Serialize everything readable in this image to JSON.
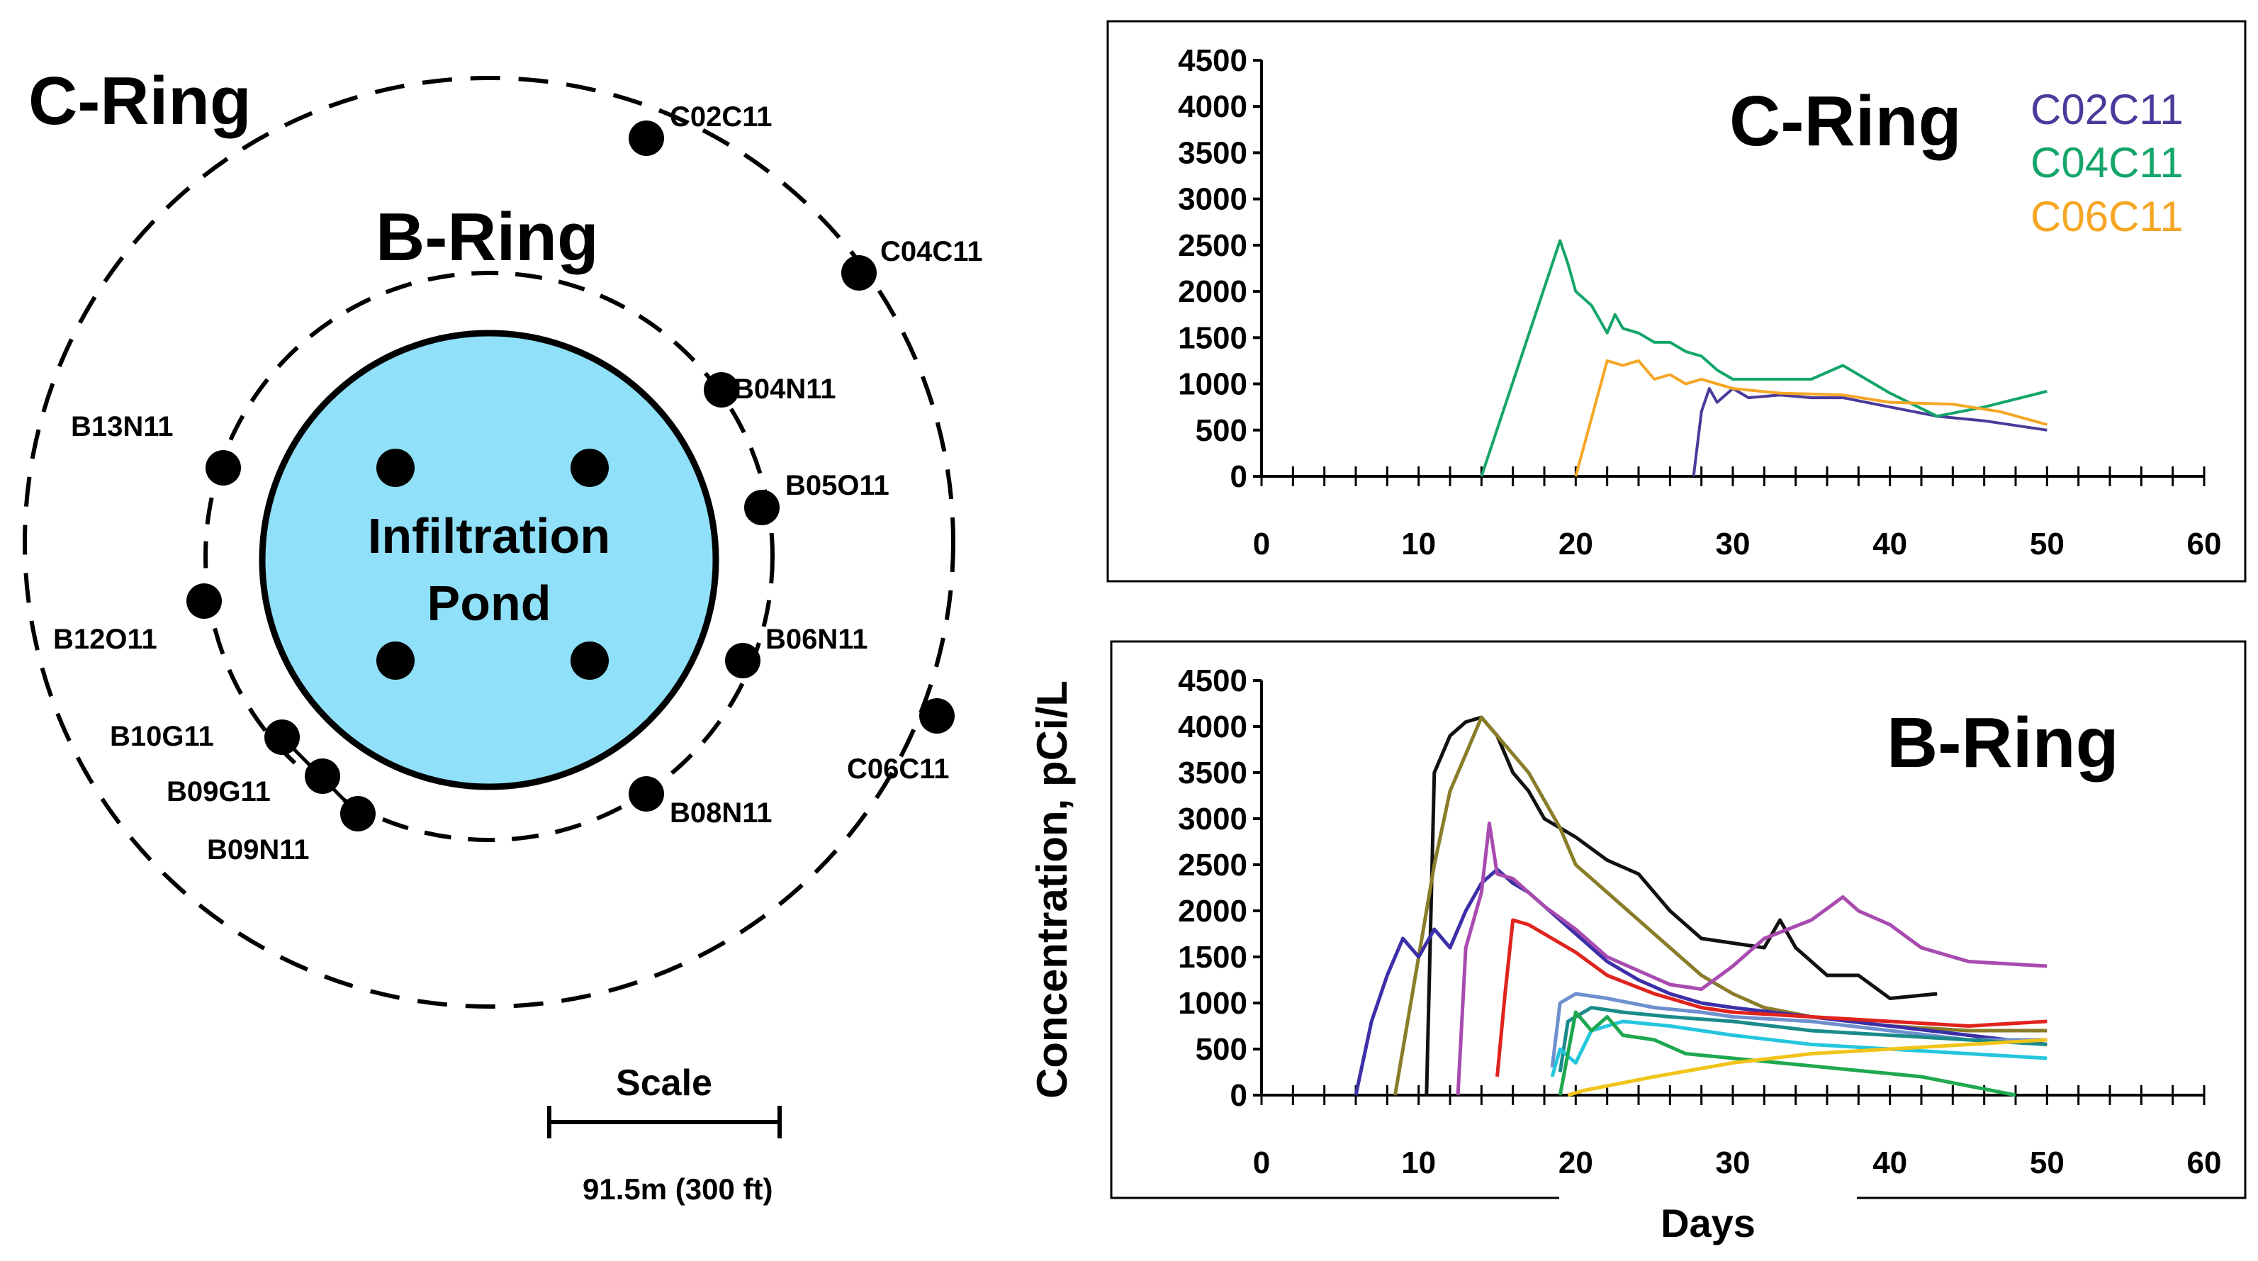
{
  "map": {
    "c_ring_label": "C-Ring",
    "b_ring_label": "B-Ring",
    "pond_line1": "Infiltration",
    "pond_line2": "Pond",
    "pond_color": "#8fe0f8",
    "scale_label": "Scale",
    "scale_value": "91.5m (300 ft)",
    "wells": [
      {
        "id": "C02C11"
      },
      {
        "id": "C04C11"
      },
      {
        "id": "C06C11"
      },
      {
        "id": "B04N11"
      },
      {
        "id": "B05O11"
      },
      {
        "id": "B06N11"
      },
      {
        "id": "B08N11"
      },
      {
        "id": "B09N11"
      },
      {
        "id": "B09G11"
      },
      {
        "id": "B10G11"
      },
      {
        "id": "B12O11"
      },
      {
        "id": "B13N11"
      }
    ]
  },
  "chart_data": [
    {
      "type": "line",
      "title": "C-Ring",
      "xlabel": "",
      "ylabel": "",
      "xlim": [
        0,
        60
      ],
      "ylim": [
        0,
        4500
      ],
      "x_ticks": [
        "0",
        "10",
        "20",
        "30",
        "40",
        "50",
        "60"
      ],
      "y_ticks": [
        "0",
        "500",
        "1000",
        "1500",
        "2000",
        "2500",
        "3000",
        "3500",
        "4000",
        "4500"
      ],
      "legend_position": "top-right",
      "series": [
        {
          "name": "C02C11",
          "color": "#4b3a9b",
          "x": [
            27.5,
            28,
            28.5,
            29,
            30,
            31,
            33,
            35,
            37,
            40,
            43,
            46,
            50
          ],
          "y": [
            0,
            700,
            950,
            800,
            950,
            850,
            880,
            850,
            850,
            750,
            650,
            600,
            500
          ]
        },
        {
          "name": "C04C11",
          "color": "#13a56a",
          "x": [
            14,
            19,
            19.5,
            20,
            21,
            22,
            22.5,
            23,
            24,
            25,
            26,
            27,
            28,
            29,
            30,
            33,
            35,
            37,
            40,
            43,
            46,
            50
          ],
          "y": [
            0,
            2550,
            2300,
            2000,
            1850,
            1550,
            1750,
            1600,
            1550,
            1450,
            1450,
            1350,
            1300,
            1150,
            1050,
            1050,
            1050,
            1200,
            900,
            650,
            750,
            920
          ]
        },
        {
          "name": "C06C11",
          "color": "#f5a623",
          "x": [
            20,
            22,
            23,
            24,
            25,
            26,
            27,
            28,
            30,
            33,
            37,
            40,
            44,
            47,
            50
          ],
          "y": [
            0,
            1250,
            1200,
            1250,
            1050,
            1100,
            1000,
            1050,
            950,
            900,
            880,
            800,
            780,
            700,
            560
          ]
        }
      ]
    },
    {
      "type": "line",
      "title": "B-Ring",
      "xlabel": "Days",
      "ylabel": "Concentration, pCi/L",
      "xlim": [
        0,
        60
      ],
      "ylim": [
        0,
        4500
      ],
      "x_ticks": [
        "0",
        "10",
        "20",
        "30",
        "40",
        "50",
        "60"
      ],
      "y_ticks": [
        "0",
        "500",
        "1000",
        "1500",
        "2000",
        "2500",
        "3000",
        "3500",
        "4000",
        "4500"
      ],
      "series": [
        {
          "name": "black",
          "color": "#111111",
          "x": [
            10.5,
            11,
            12,
            13,
            14,
            15,
            16,
            17,
            18,
            20,
            22,
            24,
            26,
            28,
            30,
            32,
            33,
            34,
            36,
            38,
            40,
            43
          ],
          "y": [
            0,
            3500,
            3900,
            4050,
            4100,
            3900,
            3500,
            3300,
            3000,
            2800,
            2550,
            2400,
            2000,
            1700,
            1650,
            1600,
            1900,
            1600,
            1300,
            1300,
            1050,
            1100
          ]
        },
        {
          "name": "olive",
          "color": "#8a7d2a",
          "x": [
            8.5,
            10,
            11,
            12,
            13,
            14,
            15,
            16,
            17,
            18,
            19,
            20,
            22,
            24,
            26,
            28,
            30,
            32,
            35,
            40,
            45,
            50
          ],
          "y": [
            0,
            1500,
            2500,
            3300,
            3700,
            4100,
            3900,
            3700,
            3500,
            3200,
            2900,
            2500,
            2200,
            1900,
            1600,
            1300,
            1100,
            950,
            850,
            750,
            700,
            700
          ]
        },
        {
          "name": "indigo",
          "color": "#3c2fa8",
          "x": [
            6,
            7,
            8,
            9,
            10,
            11,
            12,
            13,
            14,
            15,
            16,
            17,
            18,
            20,
            22,
            24,
            26,
            28,
            30,
            35,
            40,
            45,
            50
          ],
          "y": [
            0,
            800,
            1300,
            1700,
            1500,
            1800,
            1600,
            2000,
            2300,
            2450,
            2300,
            2200,
            2050,
            1750,
            1450,
            1250,
            1100,
            1000,
            950,
            850,
            750,
            650,
            550
          ]
        },
        {
          "name": "magenta",
          "color": "#a84bb0",
          "x": [
            12.5,
            13,
            14,
            14.5,
            15,
            16,
            18,
            20,
            22,
            24,
            26,
            28,
            30,
            32,
            35,
            37,
            38,
            40,
            42,
            45,
            50
          ],
          "y": [
            0,
            1600,
            2200,
            2950,
            2400,
            2350,
            2050,
            1800,
            1500,
            1350,
            1200,
            1150,
            1400,
            1700,
            1900,
            2150,
            2000,
            1850,
            1600,
            1450,
            1400
          ]
        },
        {
          "name": "red",
          "color": "#e0231d",
          "x": [
            15,
            15.5,
            16,
            17,
            18,
            20,
            22,
            25,
            28,
            30,
            35,
            40,
            45,
            50
          ],
          "y": [
            200,
            1100,
            1900,
            1850,
            1750,
            1550,
            1300,
            1100,
            950,
            900,
            850,
            800,
            750,
            800
          ]
        },
        {
          "name": "steel-blue",
          "color": "#6f8fcf",
          "x": [
            18.5,
            19,
            20,
            22,
            25,
            28,
            30,
            35,
            40,
            45,
            50
          ],
          "y": [
            300,
            1000,
            1100,
            1050,
            950,
            900,
            850,
            800,
            700,
            600,
            600
          ]
        },
        {
          "name": "teal",
          "color": "#1a8a8a",
          "x": [
            19,
            19.5,
            21,
            23,
            26,
            30,
            35,
            40,
            45,
            50
          ],
          "y": [
            250,
            800,
            950,
            900,
            850,
            800,
            700,
            650,
            600,
            550
          ]
        },
        {
          "name": "cyan",
          "color": "#24c6dd",
          "x": [
            18.5,
            19,
            20,
            21,
            23,
            26,
            30,
            35,
            40,
            45,
            50
          ],
          "y": [
            200,
            500,
            350,
            700,
            800,
            750,
            650,
            550,
            500,
            450,
            400
          ]
        },
        {
          "name": "green",
          "color": "#1fa84f",
          "x": [
            19,
            20,
            21,
            22,
            23,
            25,
            27,
            30,
            33,
            36,
            39,
            42,
            45,
            48
          ],
          "y": [
            0,
            900,
            700,
            850,
            650,
            600,
            450,
            400,
            350,
            300,
            250,
            200,
            100,
            0
          ]
        },
        {
          "name": "yellow",
          "color": "#f0c419",
          "x": [
            19.5,
            20.5,
            22,
            25,
            30,
            35,
            40,
            45,
            50
          ],
          "y": [
            0,
            50,
            100,
            200,
            350,
            450,
            500,
            550,
            600
          ]
        }
      ]
    }
  ]
}
